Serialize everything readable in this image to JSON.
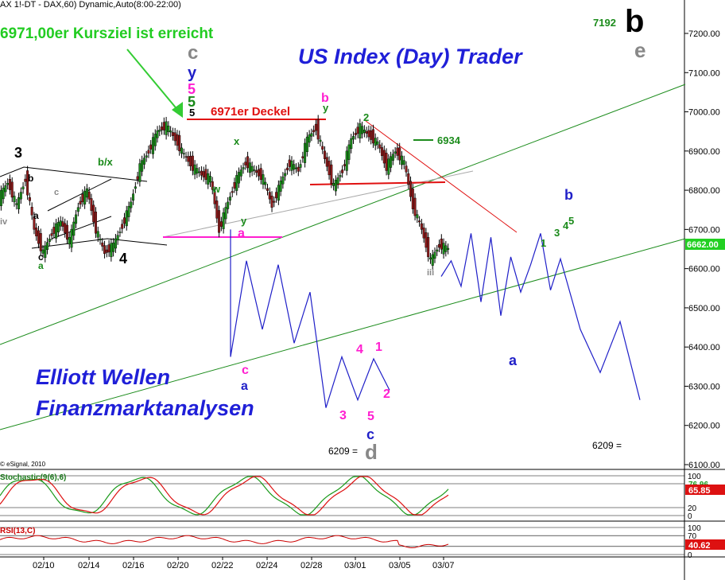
{
  "header": {
    "symbol_line": "AX 1!-DT - DAX,60) Dynamic,Auto(8:00-22:00)"
  },
  "annotations": {
    "target_reached": "6971,00er Kursziel ist erreicht",
    "deckel": "6971er Deckel",
    "title": "US Index (Day) Trader",
    "elliott1": "Elliott Wellen",
    "elliott2": "Finanzmarktanalysen",
    "level_6934": "6934",
    "level_7192": "7192",
    "target_6209_left": "6209 =",
    "target_6209_right": "6209 =",
    "copyright": "© eSignal, 2010"
  },
  "colors": {
    "price_candles": "#000000",
    "up_candle": "#1a8a1a",
    "down_candle": "#8b1a1a",
    "channel_green": "#1c8c1c",
    "wave_blue": "#1f1fc8",
    "magenta": "#ff1fd0",
    "red": "#e01010",
    "title_blue": "#1f1fd8",
    "stoch_green": "#1a9a1a",
    "stoch_red": "#dd1111",
    "rsi_red": "#cc0000",
    "last_price_bg": "#22d022",
    "stoch_value_bg": "#dd1111",
    "rsi_value_bg": "#dd1111"
  },
  "chart_data": {
    "type": "candlestick",
    "title": "",
    "y_axis": {
      "ticks": [
        "7200.00",
        "7100.00",
        "7000.00",
        "6900.00",
        "6800.00",
        "6700.00",
        "6600.00",
        "6500.00",
        "6400.00",
        "6300.00",
        "6200.00",
        "6100.00"
      ],
      "range": [
        6080,
        7300
      ]
    },
    "x_axis": {
      "ticks": [
        "02/10",
        "02/14",
        "02/16",
        "02/20",
        "02/22",
        "02/24",
        "02/28",
        "03/01",
        "03/05",
        "03/07"
      ]
    },
    "last_price": "6662.00",
    "price_path": [
      [
        0,
        6780
      ],
      [
        0.5,
        6820
      ],
      [
        1,
        6760
      ],
      [
        1.5,
        6830
      ],
      [
        2,
        6700
      ],
      [
        2.5,
        6640
      ],
      [
        3,
        6690
      ],
      [
        3.5,
        6720
      ],
      [
        4,
        6670
      ],
      [
        4.5,
        6760
      ],
      [
        5,
        6800
      ],
      [
        5.5,
        6700
      ],
      [
        6,
        6640
      ],
      [
        6.5,
        6660
      ],
      [
        7,
        6710
      ],
      [
        7.5,
        6770
      ],
      [
        8,
        6860
      ],
      [
        8.5,
        6900
      ],
      [
        9,
        6950
      ],
      [
        9.5,
        6965
      ],
      [
        10,
        6930
      ],
      [
        10.5,
        6890
      ],
      [
        11,
        6860
      ],
      [
        11.5,
        6840
      ],
      [
        12,
        6830
      ],
      [
        12.5,
        6700
      ],
      [
        13,
        6770
      ],
      [
        13.5,
        6830
      ],
      [
        14,
        6870
      ],
      [
        14.5,
        6850
      ],
      [
        15,
        6830
      ],
      [
        15.5,
        6760
      ],
      [
        16,
        6820
      ],
      [
        16.5,
        6870
      ],
      [
        17,
        6850
      ],
      [
        17.5,
        6930
      ],
      [
        18,
        6960
      ],
      [
        18.5,
        6880
      ],
      [
        19,
        6810
      ],
      [
        19.5,
        6850
      ],
      [
        20,
        6930
      ],
      [
        20.5,
        6960
      ],
      [
        21,
        6940
      ],
      [
        21.5,
        6920
      ],
      [
        22,
        6860
      ],
      [
        22.5,
        6900
      ],
      [
        23,
        6870
      ],
      [
        23.5,
        6760
      ],
      [
        24,
        6700
      ],
      [
        24.5,
        6620
      ],
      [
        25,
        6660
      ],
      [
        25.5,
        6650
      ]
    ],
    "projection_left": [
      [
        6700,
        0
      ],
      [
        6375,
        0
      ],
      [
        6620,
        1
      ],
      [
        6445,
        2
      ],
      [
        6610,
        3
      ],
      [
        6410,
        4
      ],
      [
        6540,
        5
      ],
      [
        6245,
        6
      ],
      [
        6375,
        7
      ],
      [
        6265,
        8
      ],
      [
        6370,
        9
      ],
      [
        6290,
        10
      ]
    ],
    "projection_right": [
      [
        6580,
        0
      ],
      [
        6620,
        0.5
      ],
      [
        6555,
        1
      ],
      [
        6690,
        1.5
      ],
      [
        6515,
        2
      ],
      [
        6680,
        2.5
      ],
      [
        6480,
        3
      ],
      [
        6630,
        3.5
      ],
      [
        6540,
        4
      ],
      [
        6610,
        4.5
      ],
      [
        6690,
        5
      ],
      [
        6545,
        5.5
      ],
      [
        6625,
        6
      ],
      [
        6445,
        7
      ],
      [
        6335,
        8
      ],
      [
        6465,
        9
      ],
      [
        6265,
        10
      ]
    ],
    "stochastic": {
      "label": "Stochastic(9(6),6)",
      "value_top": "76.96",
      "value": "65.85",
      "ticks": [
        "100",
        "80",
        "20",
        "0"
      ]
    },
    "rsi": {
      "label": "RSI(13,C)",
      "value": "40.62",
      "ticks": [
        "100",
        "70",
        "30",
        "0"
      ]
    }
  },
  "wave_labels": [
    {
      "t": "3",
      "c": "#000000",
      "s": 18
    },
    {
      "t": "iv",
      "c": "#888888",
      "s": 11
    },
    {
      "t": "b",
      "c": "#000000",
      "s": 12
    },
    {
      "t": "c",
      "c": "#888888",
      "s": 11
    },
    {
      "t": "a",
      "c": "#000000",
      "s": 12
    },
    {
      "t": "c",
      "c": "#000000",
      "s": 12
    },
    {
      "t": "a",
      "c": "#1a8a1a",
      "s": 12
    },
    {
      "t": "b/x",
      "c": "#1a8a1a",
      "s": 13
    },
    {
      "t": "4",
      "c": "#000000",
      "s": 18
    },
    {
      "t": "c",
      "c": "#888888",
      "s": 24
    },
    {
      "t": "y",
      "c": "#1f1fc8",
      "s": 20
    },
    {
      "t": "5",
      "c": "#ff1fd0",
      "s": 18
    },
    {
      "t": "5",
      "c": "#1a8a1a",
      "s": 18
    },
    {
      "t": "5",
      "c": "#000000",
      "s": 13
    },
    {
      "t": "b",
      "c": "#ff1fd0",
      "s": 16
    },
    {
      "t": "y",
      "c": "#1a8a1a",
      "s": 13
    },
    {
      "t": "2",
      "c": "#1a8a1a",
      "s": 13
    },
    {
      "t": "w",
      "c": "#1a8a1a",
      "s": 13
    },
    {
      "t": "x",
      "c": "#1a8a1a",
      "s": 13
    },
    {
      "t": "y",
      "c": "#1a8a1a",
      "s": 13
    },
    {
      "t": "a",
      "c": "#ff1fd0",
      "s": 16
    },
    {
      "t": "c",
      "c": "#ff1fd0",
      "s": 16
    },
    {
      "t": "a",
      "c": "#1f1fc8",
      "s": 16
    },
    {
      "t": "d",
      "c": "#888888",
      "s": 26
    },
    {
      "t": "b",
      "c": "#000000",
      "s": 40
    },
    {
      "t": "e",
      "c": "#888888",
      "s": 26
    },
    {
      "t": "iii",
      "c": "#888888",
      "s": 11
    },
    {
      "t": "1",
      "c": "#ff1fd0",
      "s": 16
    },
    {
      "t": "2",
      "c": "#ff1fd0",
      "s": 16
    },
    {
      "t": "3",
      "c": "#ff1fd0",
      "s": 16
    },
    {
      "t": "4",
      "c": "#ff1fd0",
      "s": 16
    },
    {
      "t": "5",
      "c": "#ff1fd0",
      "s": 16
    },
    {
      "t": "c",
      "c": "#1f1fc8",
      "s": 18
    },
    {
      "t": "b",
      "c": "#1f1fc8",
      "s": 18
    },
    {
      "t": "a",
      "c": "#1f1fc8",
      "s": 18
    },
    {
      "t": "4",
      "c": "#1a8a1a",
      "s": 13
    },
    {
      "t": "3",
      "c": "#1a8a1a",
      "s": 13
    },
    {
      "t": "1",
      "c": "#1a8a1a",
      "s": 13
    },
    {
      "t": "5",
      "c": "#1a8a1a",
      "s": 13
    }
  ]
}
